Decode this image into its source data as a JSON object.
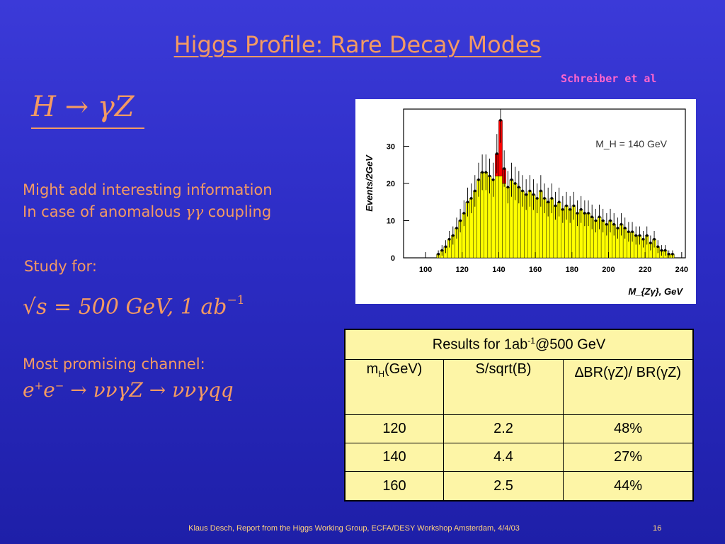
{
  "slide": {
    "title": "Higgs Profile: Rare Decay Modes",
    "citation": "Schreiber et al",
    "process_heading": "H → γZ",
    "text_line1": "Might add interesting information",
    "text_line2_prefix": "In case of anomalous ",
    "text_line2_gg": "γγ",
    "text_line2_suffix": " coupling",
    "study_for": "Study for:",
    "sqrt_s": "√s = 500 GeV, 1 ab",
    "sqrt_s_exp": "−1",
    "channel_label": "Most promising channel:",
    "channel_eq_pre": "e",
    "channel_eq_plus": "+",
    "channel_eq_e2": "e",
    "channel_eq_minus": "−",
    "channel_eq_rest": " → ννγZ → ννγqq",
    "footer": "Klaus Desch, Report from the Higgs Working Group, ECFA/DESY Workshop Amsterdam, 4/4/03",
    "page_number": "16"
  },
  "table": {
    "header_prefix": "Results for 1ab",
    "header_sup": "-1",
    "header_suffix": "@500 GeV",
    "col1_pre": "m",
    "col1_sub": "H",
    "col1_post": "(GeV)",
    "col2": "S/sqrt(B)",
    "col3": "∆BR(γZ)/ BR(γZ)",
    "rows": [
      {
        "mh": "120",
        "sig": "2.2",
        "dbr": "48%"
      },
      {
        "mh": "140",
        "sig": "4.4",
        "dbr": "27%"
      },
      {
        "mh": "160",
        "sig": "2.5",
        "dbr": "44%"
      }
    ]
  },
  "chart_data": {
    "type": "bar",
    "ylabel": "Events/2GeV",
    "xlabel": "M_{Zγ}, GeV",
    "annotation": "M_H = 140 GeV",
    "xlim": [
      88,
      242
    ],
    "ylim": [
      0,
      40
    ],
    "xticks": [
      100,
      120,
      140,
      160,
      180,
      200,
      220,
      240
    ],
    "yticks": [
      0,
      10,
      20,
      30
    ],
    "bin_width": 2,
    "bin_starts": [
      94,
      96,
      98,
      100,
      102,
      104,
      106,
      108,
      110,
      112,
      114,
      116,
      118,
      120,
      122,
      124,
      126,
      128,
      130,
      132,
      134,
      136,
      138,
      140,
      142,
      144,
      146,
      148,
      150,
      152,
      154,
      156,
      158,
      160,
      162,
      164,
      166,
      168,
      170,
      172,
      174,
      176,
      178,
      180,
      182,
      184,
      186,
      188,
      190,
      192,
      194,
      196,
      198,
      200,
      202,
      204,
      206,
      208,
      210,
      212,
      214,
      216,
      218,
      220,
      222,
      224,
      226,
      228,
      230,
      232,
      234,
      236,
      238
    ],
    "background": [
      0,
      0,
      0,
      0,
      0,
      0,
      1,
      2,
      3,
      5,
      6,
      8,
      10,
      12,
      15,
      16,
      18,
      21,
      23,
      23,
      22,
      21,
      22,
      22,
      20,
      19,
      21,
      20,
      19,
      18,
      17,
      18,
      17,
      16,
      18,
      16,
      15,
      16,
      14,
      15,
      13,
      14,
      13,
      14,
      12,
      13,
      12,
      12,
      11,
      10,
      11,
      10,
      9,
      10,
      9,
      8,
      9,
      8,
      7,
      7,
      6,
      6,
      5,
      6,
      4,
      5,
      3,
      2,
      2,
      1,
      1,
      0,
      0
    ],
    "signal": [
      0,
      0,
      0,
      0,
      0,
      0,
      0,
      0,
      0,
      0,
      0,
      0,
      0,
      0,
      0,
      0,
      0,
      0,
      0,
      0,
      0,
      0,
      6,
      15,
      4,
      0,
      0,
      0,
      0,
      0,
      0,
      0,
      0,
      0,
      0,
      0,
      0,
      0,
      0,
      0,
      0,
      0,
      0,
      0,
      0,
      0,
      0,
      0,
      0,
      0,
      0,
      0,
      0,
      0,
      0,
      0,
      0,
      0,
      0,
      0,
      0,
      0,
      0,
      0,
      0,
      0,
      0,
      0,
      0,
      0,
      0,
      0,
      0
    ],
    "colors": {
      "background": "#ffff00",
      "signal": "#ff0000",
      "points": "#000000"
    }
  }
}
